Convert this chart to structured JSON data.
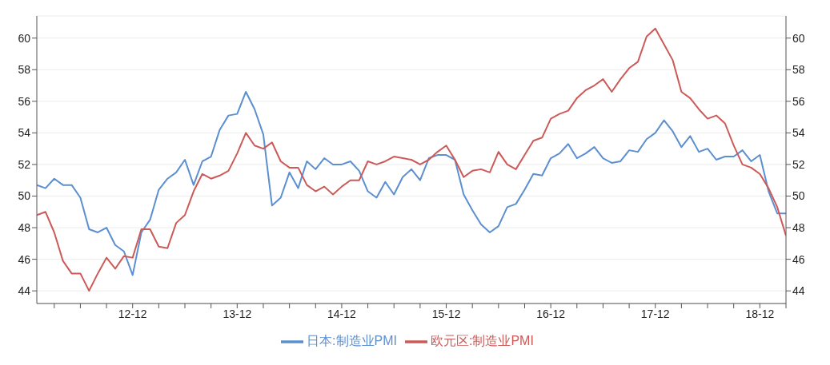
{
  "chart_data": {
    "type": "line",
    "x": [
      "2012-01",
      "2012-02",
      "2012-03",
      "2012-04",
      "2012-05",
      "2012-06",
      "2012-07",
      "2012-08",
      "2012-09",
      "2012-10",
      "2012-11",
      "2012-12",
      "2013-01",
      "2013-02",
      "2013-03",
      "2013-04",
      "2013-05",
      "2013-06",
      "2013-07",
      "2013-08",
      "2013-09",
      "2013-10",
      "2013-11",
      "2013-12",
      "2014-01",
      "2014-02",
      "2014-03",
      "2014-04",
      "2014-05",
      "2014-06",
      "2014-07",
      "2014-08",
      "2014-09",
      "2014-10",
      "2014-11",
      "2014-12",
      "2015-01",
      "2015-02",
      "2015-03",
      "2015-04",
      "2015-05",
      "2015-06",
      "2015-07",
      "2015-08",
      "2015-09",
      "2015-10",
      "2015-11",
      "2015-12",
      "2016-01",
      "2016-02",
      "2016-03",
      "2016-04",
      "2016-05",
      "2016-06",
      "2016-07",
      "2016-08",
      "2016-09",
      "2016-10",
      "2016-11",
      "2016-12",
      "2017-01",
      "2017-02",
      "2017-03",
      "2017-04",
      "2017-05",
      "2017-06",
      "2017-07",
      "2017-08",
      "2017-09",
      "2017-10",
      "2017-11",
      "2017-12",
      "2018-01",
      "2018-02",
      "2018-03",
      "2018-04",
      "2018-05",
      "2018-06",
      "2018-07",
      "2018-08",
      "2018-09",
      "2018-10",
      "2018-11",
      "2018-12",
      "2019-01",
      "2019-02",
      "2019-03"
    ],
    "series": [
      {
        "name": "日本:制造业PMI",
        "color": "#5b8fd0",
        "values": [
          50.7,
          50.5,
          51.1,
          50.7,
          50.7,
          49.9,
          47.9,
          47.7,
          48.0,
          46.9,
          46.5,
          45.0,
          47.7,
          48.5,
          50.4,
          51.1,
          51.5,
          52.3,
          50.7,
          52.2,
          52.5,
          54.2,
          55.1,
          55.2,
          56.6,
          55.5,
          53.9,
          49.4,
          49.9,
          51.5,
          50.5,
          52.2,
          51.7,
          52.4,
          52.0,
          52.0,
          52.2,
          51.6,
          50.3,
          49.9,
          50.9,
          50.1,
          51.2,
          51.7,
          51.0,
          52.4,
          52.6,
          52.6,
          52.3,
          50.1,
          49.1,
          48.2,
          47.7,
          48.1,
          49.3,
          49.5,
          50.4,
          51.4,
          51.3,
          52.4,
          52.7,
          53.3,
          52.4,
          52.7,
          53.1,
          52.4,
          52.1,
          52.2,
          52.9,
          52.8,
          53.6,
          54.0,
          54.8,
          54.1,
          53.1,
          53.8,
          52.8,
          53.0,
          52.3,
          52.5,
          52.5,
          52.9,
          52.2,
          52.6,
          50.3,
          48.9,
          48.9
        ]
      },
      {
        "name": "欧元区:制造业PMI",
        "color": "#cc5a58",
        "values": [
          48.8,
          49.0,
          47.7,
          45.9,
          45.1,
          45.1,
          44.0,
          45.1,
          46.1,
          45.4,
          46.2,
          46.1,
          47.9,
          47.9,
          46.8,
          46.7,
          48.3,
          48.8,
          50.3,
          51.4,
          51.1,
          51.3,
          51.6,
          52.7,
          54.0,
          53.2,
          53.0,
          53.4,
          52.2,
          51.8,
          51.8,
          50.7,
          50.3,
          50.6,
          50.1,
          50.6,
          51.0,
          51.0,
          52.2,
          52.0,
          52.2,
          52.5,
          52.4,
          52.3,
          52.0,
          52.3,
          52.8,
          53.2,
          52.3,
          51.2,
          51.6,
          51.7,
          51.5,
          52.8,
          52.0,
          51.7,
          52.6,
          53.5,
          53.7,
          54.9,
          55.2,
          55.4,
          56.2,
          56.7,
          57.0,
          57.4,
          56.6,
          57.4,
          58.1,
          58.5,
          60.1,
          60.6,
          59.6,
          58.6,
          56.6,
          56.2,
          55.5,
          54.9,
          55.1,
          54.6,
          53.2,
          52.0,
          51.8,
          51.4,
          50.5,
          49.3,
          47.5
        ]
      }
    ],
    "xlim": [
      "2012-01",
      "2019-03"
    ],
    "xticks": [
      {
        "value": "2012-03",
        "label": null
      },
      {
        "value": "2012-06",
        "label": null
      },
      {
        "value": "2012-09",
        "label": null
      },
      {
        "value": "2012-12",
        "label": "12-12"
      },
      {
        "value": "2013-03",
        "label": null
      },
      {
        "value": "2013-06",
        "label": null
      },
      {
        "value": "2013-09",
        "label": null
      },
      {
        "value": "2013-12",
        "label": "13-12"
      },
      {
        "value": "2014-03",
        "label": null
      },
      {
        "value": "2014-06",
        "label": null
      },
      {
        "value": "2014-09",
        "label": null
      },
      {
        "value": "2014-12",
        "label": "14-12"
      },
      {
        "value": "2015-03",
        "label": null
      },
      {
        "value": "2015-06",
        "label": null
      },
      {
        "value": "2015-09",
        "label": null
      },
      {
        "value": "2015-12",
        "label": "15-12"
      },
      {
        "value": "2016-03",
        "label": null
      },
      {
        "value": "2016-06",
        "label": null
      },
      {
        "value": "2016-09",
        "label": null
      },
      {
        "value": "2016-12",
        "label": "16-12"
      },
      {
        "value": "2017-03",
        "label": null
      },
      {
        "value": "2017-06",
        "label": null
      },
      {
        "value": "2017-09",
        "label": null
      },
      {
        "value": "2017-12",
        "label": "17-12"
      },
      {
        "value": "2018-03",
        "label": null
      },
      {
        "value": "2018-06",
        "label": null
      },
      {
        "value": "2018-09",
        "label": null
      },
      {
        "value": "2018-12",
        "label": "18-12"
      },
      {
        "value": "2019-03",
        "label": null
      }
    ],
    "ylim": [
      43.2,
      61.4
    ],
    "yticks": [
      44,
      46,
      48,
      50,
      52,
      54,
      56,
      58,
      60
    ],
    "y2lim": [
      43.2,
      61.4
    ],
    "y2ticks": [
      44,
      46,
      48,
      50,
      52,
      54,
      56,
      58,
      60
    ],
    "grid": "y",
    "legend": "bottom",
    "marker": "none",
    "line_style": "solid"
  }
}
